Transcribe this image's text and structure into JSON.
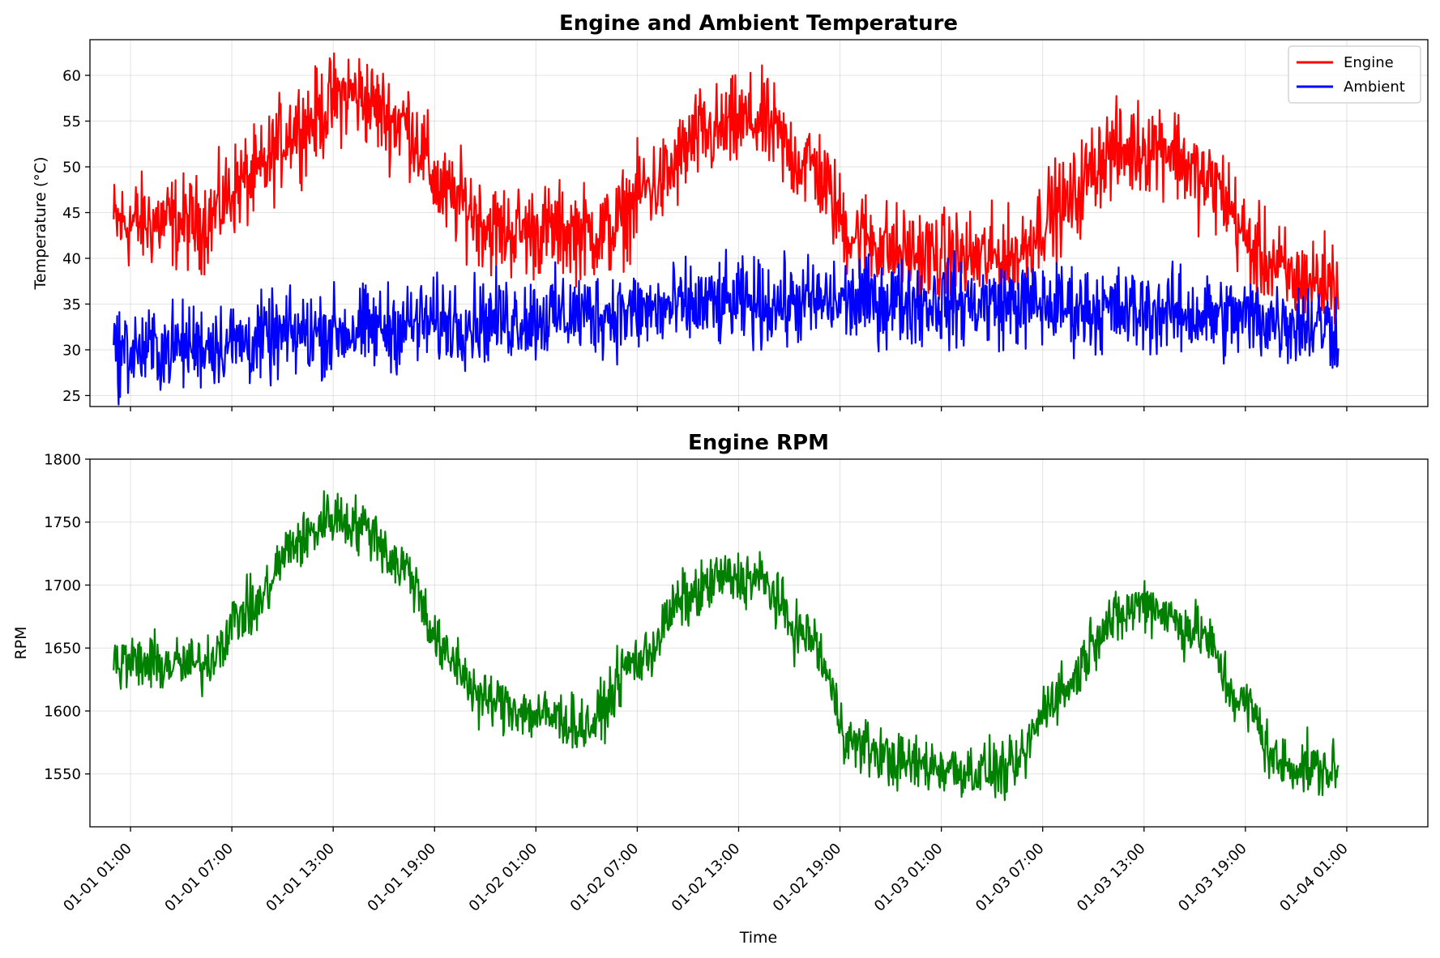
{
  "chart_data": [
    {
      "type": "line",
      "title": "Engine and Ambient Temperature",
      "xlabel": "",
      "ylabel": "Temperature (°C)",
      "x_range_hours": [
        -2.4,
        76.8
      ],
      "data_x_range_hours": [
        -1,
        71.5
      ],
      "ylim": [
        23.8,
        63.9
      ],
      "yticks": [
        25,
        30,
        35,
        40,
        45,
        50,
        55,
        60
      ],
      "grid": true,
      "legend": "top-right",
      "series": [
        {
          "name": "Engine",
          "color": "#ff0000",
          "noise_amplitude": 2.5,
          "points": [
            {
              "t": -1,
              "v": 43.8
            },
            {
              "t": 2,
              "v": 44.0
            },
            {
              "t": 4,
              "v": 43.8
            },
            {
              "t": 7,
              "v": 48.5
            },
            {
              "t": 10,
              "v": 54.5
            },
            {
              "t": 13,
              "v": 58.0
            },
            {
              "t": 16,
              "v": 55.0
            },
            {
              "t": 19,
              "v": 46.5
            },
            {
              "t": 22,
              "v": 43.0
            },
            {
              "t": 25,
              "v": 43.0
            },
            {
              "t": 28,
              "v": 42.8
            },
            {
              "t": 31,
              "v": 48.0
            },
            {
              "t": 34,
              "v": 53.5
            },
            {
              "t": 37,
              "v": 55.0
            },
            {
              "t": 40,
              "v": 50.5
            },
            {
              "t": 43,
              "v": 42.5
            },
            {
              "t": 46,
              "v": 40.5
            },
            {
              "t": 49,
              "v": 40.0
            },
            {
              "t": 52,
              "v": 40.0
            },
            {
              "t": 55,
              "v": 45.5
            },
            {
              "t": 58,
              "v": 51.5
            },
            {
              "t": 61,
              "v": 52.5
            },
            {
              "t": 64,
              "v": 48.0
            },
            {
              "t": 67,
              "v": 40.0
            },
            {
              "t": 69,
              "v": 37.5
            },
            {
              "t": 71.5,
              "v": 37.5
            }
          ]
        },
        {
          "name": "Ambient",
          "color": "#0000ff",
          "noise_amplitude": 2.3,
          "points": [
            {
              "t": -1,
              "v": 29.8
            },
            {
              "t": 6,
              "v": 30.8
            },
            {
              "t": 12,
              "v": 32.0
            },
            {
              "t": 20,
              "v": 33.2
            },
            {
              "t": 28,
              "v": 34.0
            },
            {
              "t": 36,
              "v": 35.0
            },
            {
              "t": 44,
              "v": 35.3
            },
            {
              "t": 52,
              "v": 35.0
            },
            {
              "t": 60,
              "v": 34.2
            },
            {
              "t": 66,
              "v": 33.5
            },
            {
              "t": 71.5,
              "v": 32.6
            }
          ]
        }
      ]
    },
    {
      "type": "line",
      "title": "Engine RPM",
      "xlabel": "Time",
      "ylabel": "RPM",
      "x_range_hours": [
        -2.4,
        76.8
      ],
      "data_x_range_hours": [
        -1,
        71.5
      ],
      "ylim": [
        1508,
        1800
      ],
      "yticks": [
        1550,
        1600,
        1650,
        1700,
        1750,
        1800
      ],
      "xticks": [
        {
          "t": 0,
          "label": "01-01 01:00"
        },
        {
          "t": 6,
          "label": "01-01 07:00"
        },
        {
          "t": 12,
          "label": "01-01 13:00"
        },
        {
          "t": 18,
          "label": "01-01 19:00"
        },
        {
          "t": 24,
          "label": "01-02 01:00"
        },
        {
          "t": 30,
          "label": "01-02 07:00"
        },
        {
          "t": 36,
          "label": "01-02 13:00"
        },
        {
          "t": 42,
          "label": "01-02 19:00"
        },
        {
          "t": 48,
          "label": "01-03 01:00"
        },
        {
          "t": 54,
          "label": "01-03 07:00"
        },
        {
          "t": 60,
          "label": "01-03 13:00"
        },
        {
          "t": 66,
          "label": "01-03 19:00"
        },
        {
          "t": 72,
          "label": "01-04 01:00"
        }
      ],
      "grid": true,
      "series": [
        {
          "name": "RPM",
          "color": "#008000",
          "noise_amplitude": 11,
          "points": [
            {
              "t": -1,
              "v": 1638
            },
            {
              "t": 2,
              "v": 1637
            },
            {
              "t": 4,
              "v": 1636
            },
            {
              "t": 7,
              "v": 1680
            },
            {
              "t": 10,
              "v": 1735
            },
            {
              "t": 12,
              "v": 1755
            },
            {
              "t": 14,
              "v": 1745
            },
            {
              "t": 16,
              "v": 1715
            },
            {
              "t": 19,
              "v": 1640
            },
            {
              "t": 21,
              "v": 1608
            },
            {
              "t": 25,
              "v": 1595
            },
            {
              "t": 27,
              "v": 1588
            },
            {
              "t": 30,
              "v": 1640
            },
            {
              "t": 33,
              "v": 1690
            },
            {
              "t": 35,
              "v": 1705
            },
            {
              "t": 37,
              "v": 1705
            },
            {
              "t": 40,
              "v": 1660
            },
            {
              "t": 43,
              "v": 1572
            },
            {
              "t": 46,
              "v": 1558
            },
            {
              "t": 50,
              "v": 1553
            },
            {
              "t": 52,
              "v": 1552
            },
            {
              "t": 55,
              "v": 1615
            },
            {
              "t": 58,
              "v": 1670
            },
            {
              "t": 60,
              "v": 1686
            },
            {
              "t": 63,
              "v": 1665
            },
            {
              "t": 66,
              "v": 1605
            },
            {
              "t": 68,
              "v": 1558
            },
            {
              "t": 71.5,
              "v": 1552
            }
          ]
        }
      ]
    }
  ]
}
